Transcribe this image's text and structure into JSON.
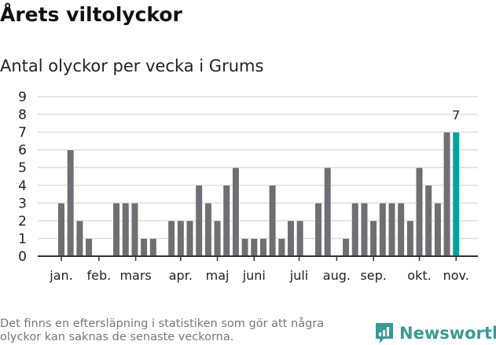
{
  "chart_data": {
    "type": "bar",
    "title": "Årets viltolyckor",
    "subtitle": "Antal olyckor per vecka i Grums",
    "xlabel": "",
    "ylabel": "",
    "ylim": [
      0,
      9
    ],
    "yticks": [
      0,
      1,
      2,
      3,
      4,
      5,
      6,
      7,
      8,
      9
    ],
    "grid": true,
    "weeks": [
      1,
      2,
      3,
      4,
      5,
      6,
      7,
      8,
      9,
      10,
      11,
      12,
      13,
      14,
      15,
      16,
      17,
      18,
      19,
      20,
      21,
      22,
      23,
      24,
      25,
      26,
      27,
      28,
      29,
      30,
      31,
      32,
      33,
      34,
      35,
      36,
      37,
      38,
      39,
      40,
      41,
      42,
      43,
      44
    ],
    "values": [
      3,
      6,
      2,
      1,
      0,
      0,
      3,
      3,
      3,
      1,
      1,
      0,
      2,
      2,
      2,
      4,
      3,
      2,
      4,
      5,
      1,
      1,
      1,
      4,
      1,
      2,
      2,
      0,
      3,
      5,
      0,
      1,
      3,
      3,
      2,
      3,
      3,
      3,
      2,
      5,
      4,
      3,
      7,
      7
    ],
    "month_ticks": [
      {
        "label": "jan.",
        "week": 1
      },
      {
        "label": "feb.",
        "week": 5.1
      },
      {
        "label": "mars",
        "week": 9.1
      },
      {
        "label": "apr.",
        "week": 14
      },
      {
        "label": "maj",
        "week": 18
      },
      {
        "label": "juni",
        "week": 22
      },
      {
        "label": "juli",
        "week": 26.9
      },
      {
        "label": "aug.",
        "week": 31
      },
      {
        "label": "sep.",
        "week": 35
      },
      {
        "label": "okt.",
        "week": 40
      },
      {
        "label": "nov.",
        "week": 44
      }
    ],
    "highlight": {
      "week": 44,
      "value": 7,
      "label": "7"
    },
    "colors": {
      "bar": "#6f6e73",
      "highlight": "#00a39a",
      "grid": "#dddddd",
      "axis": "#333333"
    }
  },
  "footer": {
    "note": "Det finns en eftersläpning i statistiken som gör att några olyckor kan saknas de senaste veckorna.",
    "brand": "Newsworthy"
  }
}
